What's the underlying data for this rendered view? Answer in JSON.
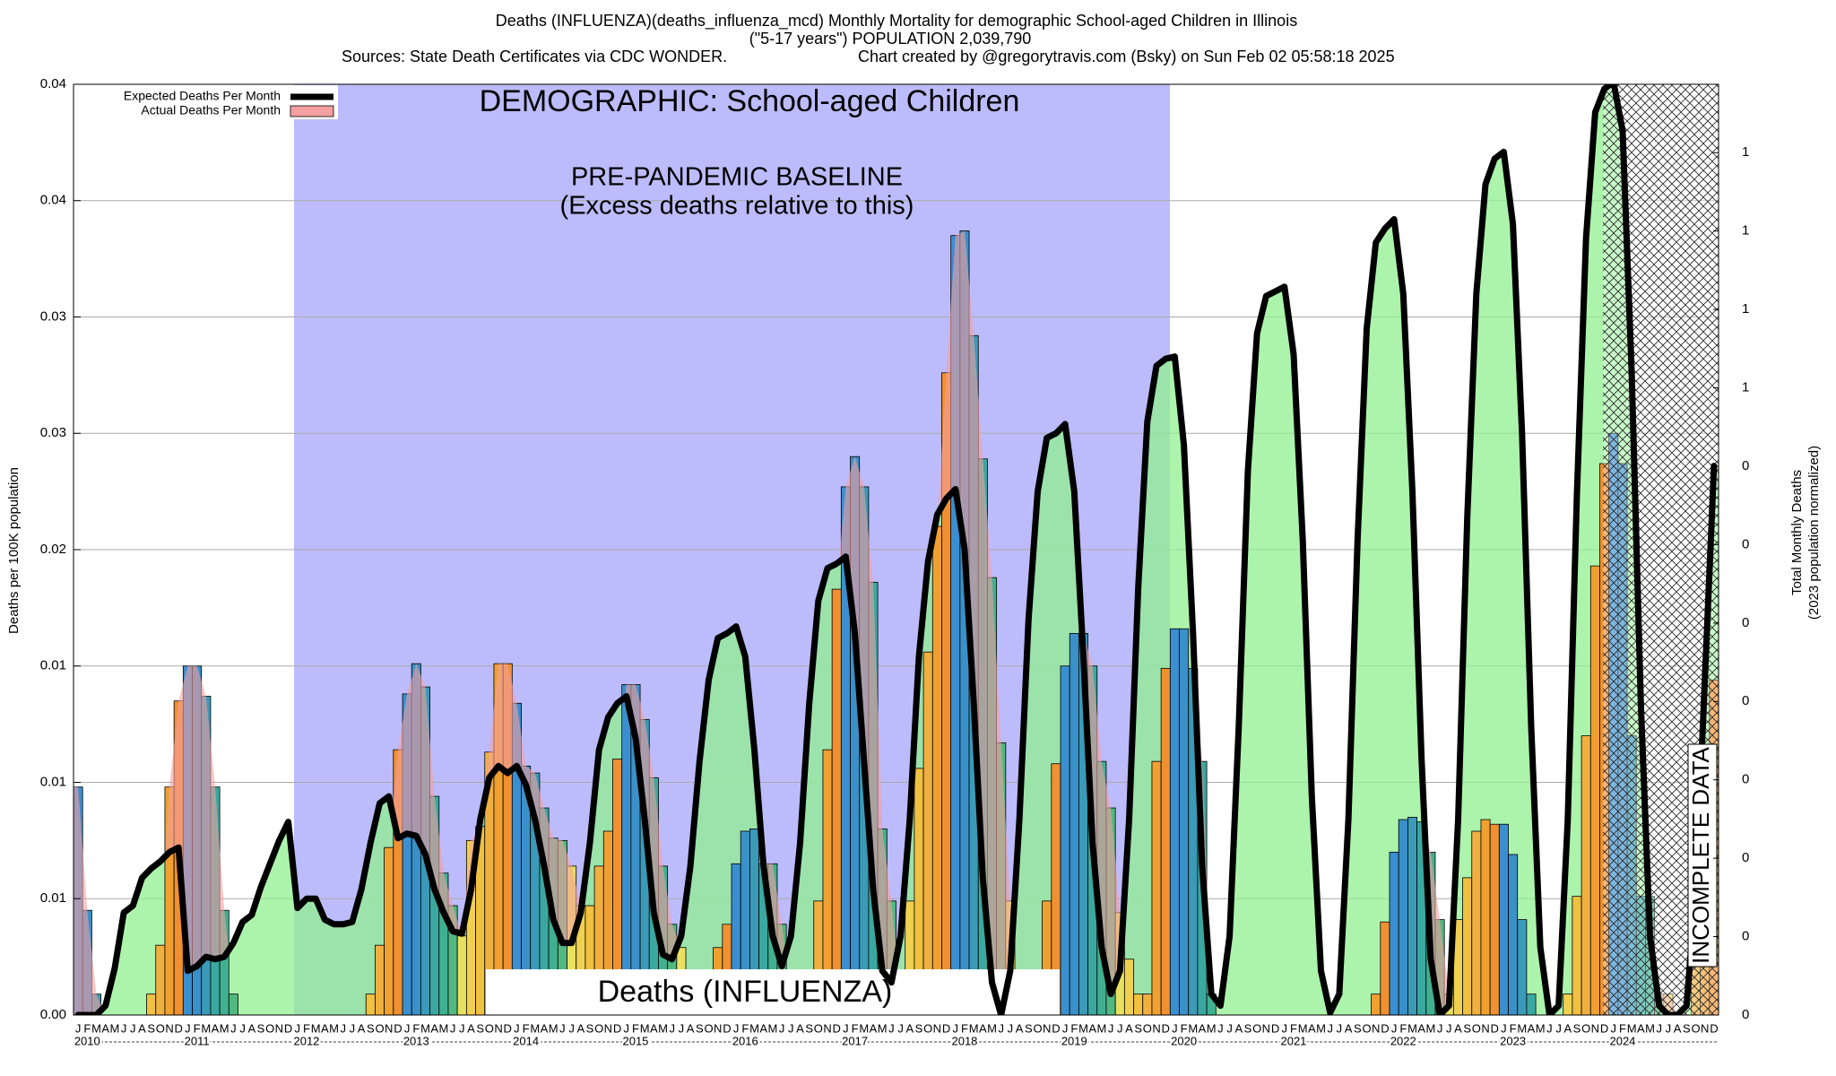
{
  "chart_data": {
    "type": "bar",
    "title": "Deaths (INFLUENZA)(deaths_influenza_mcd) Monthly Mortality for demographic School-aged Children in Illinois",
    "subtitle": "(\"5-17 years\") POPULATION 2,039,790",
    "source": "Sources: State Death Certificates via CDC WONDER.",
    "credit": "Chart created by @gregorytravis.com (Bsky) on Sun Feb 02 05:58:18 2025",
    "ylabel": "Deaths per 100K population",
    "y2label": [
      "Total Monthly Deaths",
      "(2023 population normalized)"
    ],
    "annotations": {
      "demographic": "DEMOGRAPHIC: School-aged Children",
      "baseline": [
        "PRE-PANDEMIC BASELINE",
        "(Excess deaths relative to this)"
      ],
      "cause": "Deaths (INFLUENZA)",
      "incomplete": "INCOMPLETE DATA"
    },
    "years": [
      "2010",
      "2011",
      "2012",
      "2013",
      "2014",
      "2015",
      "2016",
      "2017",
      "2018",
      "2019",
      "2020",
      "2021",
      "2022",
      "2023",
      "2024"
    ],
    "categories": [
      "J",
      "F",
      "M",
      "A",
      "M",
      "J",
      "J",
      "A",
      "S",
      "O",
      "N",
      "D",
      "J",
      "F",
      "M",
      "A",
      "M",
      "J",
      "J",
      "A",
      "S",
      "O",
      "N",
      "D",
      "J",
      "F",
      "M",
      "A",
      "M",
      "J",
      "J",
      "A",
      "S",
      "O",
      "N",
      "D",
      "J",
      "F",
      "M",
      "A",
      "M",
      "J",
      "J",
      "A",
      "S",
      "O",
      "N",
      "D",
      "J",
      "F",
      "M",
      "A",
      "M",
      "J",
      "J",
      "A",
      "S",
      "O",
      "N",
      "D",
      "J",
      "F",
      "M",
      "A",
      "M",
      "J",
      "J",
      "A",
      "S",
      "O",
      "N",
      "D",
      "J",
      "F",
      "M",
      "A",
      "M",
      "J",
      "J",
      "A",
      "S",
      "O",
      "N",
      "D",
      "J",
      "F",
      "M",
      "A",
      "M",
      "J",
      "J",
      "A",
      "S",
      "O",
      "N",
      "D",
      "J",
      "F",
      "M",
      "A",
      "M",
      "J",
      "J",
      "A",
      "S",
      "O",
      "N",
      "D",
      "J",
      "F",
      "M",
      "A",
      "M",
      "J",
      "J",
      "A",
      "S",
      "O",
      "N",
      "D",
      "J",
      "F",
      "M",
      "A",
      "M",
      "J",
      "J",
      "A",
      "S",
      "O",
      "N",
      "D",
      "J",
      "F",
      "M",
      "A",
      "M",
      "J",
      "J",
      "A",
      "S",
      "O",
      "N",
      "D",
      "J",
      "F",
      "M",
      "A",
      "M",
      "J",
      "J",
      "A",
      "S",
      "O",
      "N",
      "D",
      "J",
      "F",
      "M",
      "A",
      "M",
      "J",
      "J",
      "A",
      "S",
      "O",
      "N",
      "D",
      "J",
      "F",
      "M",
      "A",
      "M",
      "J",
      "J",
      "A",
      "S",
      "O",
      "N",
      "D"
    ],
    "series": [
      {
        "name": "Expected Deaths Per Month",
        "color": "#000000",
        "fill_color": "#90f090",
        "values": [
          0,
          0,
          0,
          0.0004,
          0.002,
          0.0044,
          0.0047,
          0.0059,
          0.0063,
          0.0066,
          0.007,
          0.0072,
          0.0019,
          0.0021,
          0.0025,
          0.0024,
          0.0025,
          0.0031,
          0.004,
          0.0043,
          0.0055,
          0.0065,
          0.0075,
          0.0083,
          0.0046,
          0.005,
          0.005,
          0.0041,
          0.0039,
          0.0039,
          0.004,
          0.0054,
          0.0074,
          0.0091,
          0.0094,
          0.0076,
          0.0078,
          0.0077,
          0.0069,
          0.0054,
          0.0044,
          0.0036,
          0.0035,
          0.0054,
          0.0084,
          0.0102,
          0.0107,
          0.0104,
          0.0107,
          0.0099,
          0.0084,
          0.0064,
          0.0041,
          0.0031,
          0.0031,
          0.0044,
          0.0074,
          0.0114,
          0.0128,
          0.0134,
          0.0137,
          0.0119,
          0.0084,
          0.0044,
          0.0026,
          0.0024,
          0.0034,
          0.0064,
          0.0109,
          0.0144,
          0.0162,
          0.0164,
          0.0167,
          0.0154,
          0.0114,
          0.0064,
          0.0034,
          0.0021,
          0.0034,
          0.0074,
          0.0134,
          0.0178,
          0.0192,
          0.0194,
          0.0197,
          0.0164,
          0.0109,
          0.0054,
          0.0019,
          0.0014,
          0.0034,
          0.0084,
          0.0154,
          0.0195,
          0.0215,
          0.0222,
          0.0226,
          0.02,
          0.0134,
          0.0059,
          0.0014,
          0,
          0.0019,
          0.0084,
          0.017,
          0.0225,
          0.0248,
          0.025,
          0.0254,
          0.0225,
          0.0154,
          0.0074,
          0.0029,
          0.0009,
          0.0019,
          0.0084,
          0.0184,
          0.0255,
          0.0279,
          0.0282,
          0.0283,
          0.0245,
          0.0164,
          0.0064,
          0.0009,
          0.0004,
          0.0034,
          0.0124,
          0.0234,
          0.0293,
          0.0309,
          0.0311,
          0.0313,
          0.0284,
          0.0204,
          0.0094,
          0.0019,
          0.0001,
          0.0009,
          0.0084,
          0.0204,
          0.0295,
          0.0332,
          0.0338,
          0.0342,
          0.031,
          0.0225,
          0.011,
          0.0024,
          0,
          0.0004,
          0.0084,
          0.0214,
          0.031,
          0.0357,
          0.0368,
          0.0371,
          0.034,
          0.025,
          0.0124,
          0.0029,
          0,
          0.0004,
          0.0084,
          0.0224,
          0.0334,
          0.0388,
          0.0398,
          0.0401,
          0.038,
          0.0275,
          0.0134,
          0.0034,
          0.0004,
          0,
          0,
          0.0004,
          0.0054,
          0.0144,
          0.0236
        ]
      },
      {
        "name": "Actual Deaths Per Month",
        "color": "#f4a0a0",
        "month_colors": [
          "#3a8fd0",
          "#3a90c8",
          "#3a9ab8",
          "#3aa8a0",
          "#40b090",
          "#50b880",
          "#e8e060",
          "#f0d050",
          "#f0c040",
          "#f0b040",
          "#f0a030",
          "#f09030"
        ],
        "values": [
          0.0098,
          0.0045,
          0.0009,
          0,
          0,
          0,
          0,
          0,
          0.0009,
          0.003,
          0.0098,
          0.0135,
          0.015,
          0.015,
          0.0137,
          0.0098,
          0.0045,
          0.0009,
          0,
          0,
          0,
          0,
          0,
          0,
          0,
          0,
          0,
          0,
          0,
          0,
          0,
          0,
          0.0009,
          0.003,
          0.0072,
          0.0114,
          0.0138,
          0.0151,
          0.0141,
          0.0094,
          0.0061,
          0.0047,
          0.0034,
          0.0075,
          0.0081,
          0.0113,
          0.0151,
          0.0151,
          0.0134,
          0.0107,
          0.0104,
          0.0089,
          0.0076,
          0.0075,
          0.0064,
          0.0047,
          0.0047,
          0.0064,
          0.0079,
          0.011,
          0.0142,
          0.0142,
          0.0127,
          0.0102,
          0.0064,
          0.0039,
          0.0029,
          0.0009,
          0.0009,
          0.0009,
          0.0029,
          0.0039,
          0.0065,
          0.0079,
          0.008,
          0.0065,
          0.0065,
          0.0039,
          0.0009,
          0.0009,
          0.0009,
          0.0049,
          0.0114,
          0.0183,
          0.0227,
          0.024,
          0.0227,
          0.0186,
          0.008,
          0.0049,
          0.0009,
          0.0049,
          0.0106,
          0.0156,
          0.021,
          0.0276,
          0.0335,
          0.0337,
          0.0292,
          0.0239,
          0.0188,
          0.0117,
          0.0049,
          0.0009,
          0,
          0.0009,
          0.0049,
          0.0108,
          0.015,
          0.0164,
          0.0164,
          0.015,
          0.0109,
          0.0089,
          0.0044,
          0.0024,
          0.0009,
          0.0009,
          0.0109,
          0.0149,
          0.0166,
          0.0166,
          0.0149,
          0.0109,
          0.0009,
          0,
          0,
          0,
          0,
          0,
          0,
          0,
          0,
          0,
          0,
          0,
          0,
          0,
          0,
          0,
          0,
          0,
          0.0009,
          0.004,
          0.007,
          0.0084,
          0.0085,
          0.0083,
          0.007,
          0.0041,
          0.0009,
          0.0041,
          0.0059,
          0.0079,
          0.0084,
          0.0082,
          0.0082,
          0.0069,
          0.0041,
          0.0009,
          0,
          0,
          0,
          0.0009,
          0.0051,
          0.012,
          0.0193,
          0.0237,
          0.025,
          0.0237,
          0.012,
          0.0051,
          0.0051,
          0.0009,
          0.0009,
          0,
          0,
          0.004,
          0.004,
          0.0144
        ]
      }
    ],
    "ylim": [
      0,
      0.04
    ],
    "yticks": [
      {
        "value": 0,
        "label": "0.00"
      },
      {
        "value": 0.005,
        "label": "0.01"
      },
      0.01,
      {
        "value": 0.015,
        "label": "0.01"
      },
      0.02,
      {
        "value": 0.025,
        "label": "0.03"
      },
      0.03,
      {
        "value": 0.035,
        "label": "0.04"
      },
      0.04
    ],
    "y2lim": [
      0,
      0.742
    ],
    "y2ticks": [
      0,
      {
        "value": 0.0625,
        "label": "0"
      },
      {
        "value": 0.125,
        "label": "0"
      },
      {
        "value": 0.1875,
        "label": "0"
      },
      {
        "value": 0.25,
        "label": "0"
      },
      {
        "value": 0.3125,
        "label": "0"
      },
      {
        "value": 0.375,
        "label": "0"
      },
      {
        "value": 0.4375,
        "label": "0"
      },
      {
        "value": 0.5,
        "label": "1"
      },
      {
        "value": 0.5625,
        "label": "1"
      },
      {
        "value": 0.625,
        "label": "1"
      },
      {
        "value": 0.6875,
        "label": "1"
      }
    ],
    "grid": true,
    "legend": "upper left"
  }
}
